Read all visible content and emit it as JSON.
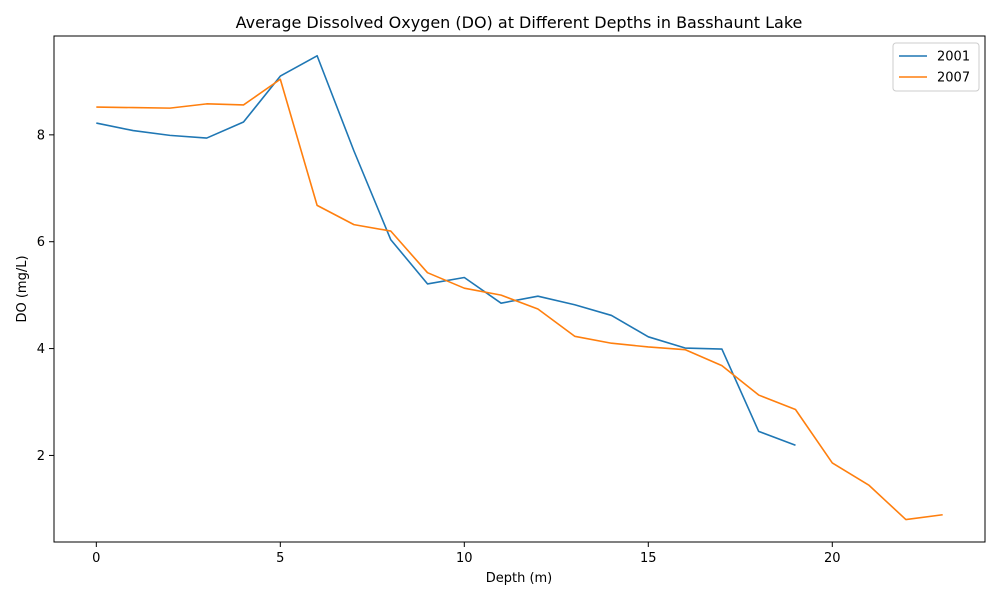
{
  "chart_data": {
    "type": "line",
    "title": "Average Dissolved Oxygen (DO) at Different Depths in Basshaunt Lake",
    "xlabel": "Depth (m)",
    "ylabel": "DO (mg/L)",
    "xlim": [
      -1.15,
      24.15
    ],
    "ylim": [
      0.38,
      9.85
    ],
    "xticks": [
      0,
      5,
      10,
      15,
      20
    ],
    "yticks": [
      2,
      4,
      6,
      8
    ],
    "grid": false,
    "legend_position": "top-right",
    "series": [
      {
        "name": "2001",
        "color": "#1f77b4",
        "x": [
          0,
          1,
          2,
          3,
          4,
          5,
          6,
          7,
          8,
          9,
          10,
          11,
          12,
          13,
          14,
          15,
          16,
          17,
          18,
          19
        ],
        "y": [
          8.22,
          8.08,
          7.99,
          7.94,
          8.24,
          9.1,
          9.48,
          7.7,
          6.04,
          5.21,
          5.33,
          4.85,
          4.98,
          4.82,
          4.62,
          4.22,
          4.01,
          3.99,
          2.45,
          2.19
        ]
      },
      {
        "name": "2007",
        "color": "#ff7f0e",
        "x": [
          0,
          1,
          2,
          3,
          4,
          5,
          6,
          7,
          8,
          9,
          10,
          11,
          12,
          13,
          14,
          15,
          16,
          17,
          18,
          19,
          20,
          21,
          22,
          23
        ],
        "y": [
          8.52,
          8.51,
          8.5,
          8.58,
          8.56,
          9.04,
          6.68,
          6.32,
          6.2,
          5.42,
          5.13,
          5.0,
          4.74,
          4.23,
          4.1,
          4.03,
          3.98,
          3.68,
          3.13,
          2.86,
          1.86,
          1.44,
          0.8,
          0.89
        ]
      }
    ]
  }
}
